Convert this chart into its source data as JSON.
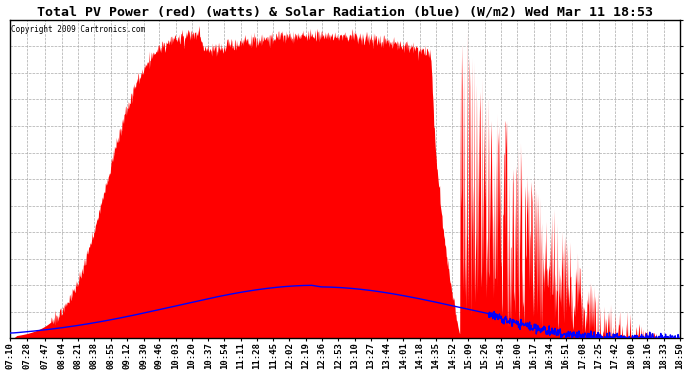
{
  "title": "Total PV Power (red) (watts) & Solar Radiation (blue) (W/m2) Wed Mar 11 18:53",
  "copyright": "Copyright 2009 Cartronics.com",
  "background_color": "#ffffff",
  "plot_background": "#ffffff",
  "grid_color": "#aaaaaa",
  "yticks": [
    0.0,
    319.9,
    639.7,
    959.6,
    1279.4,
    1599.3,
    1919.1,
    2239.0,
    2558.8,
    2878.7,
    3198.5,
    3518.4,
    3838.3
  ],
  "ymax": 3838.3,
  "xtick_labels": [
    "07:10",
    "07:28",
    "07:47",
    "08:04",
    "08:21",
    "08:38",
    "08:55",
    "09:12",
    "09:30",
    "09:46",
    "10:03",
    "10:20",
    "10:37",
    "10:54",
    "11:11",
    "11:28",
    "11:45",
    "12:02",
    "12:19",
    "12:36",
    "12:53",
    "13:10",
    "13:27",
    "13:44",
    "14:01",
    "14:18",
    "14:35",
    "14:52",
    "15:09",
    "15:26",
    "15:43",
    "16:00",
    "16:17",
    "16:34",
    "16:51",
    "17:08",
    "17:25",
    "17:42",
    "18:00",
    "18:16",
    "18:33",
    "18:50"
  ],
  "pv_color": "#ff0000",
  "solar_color": "#0000ff",
  "title_fontsize": 9.5,
  "tick_fontsize": 6.5
}
